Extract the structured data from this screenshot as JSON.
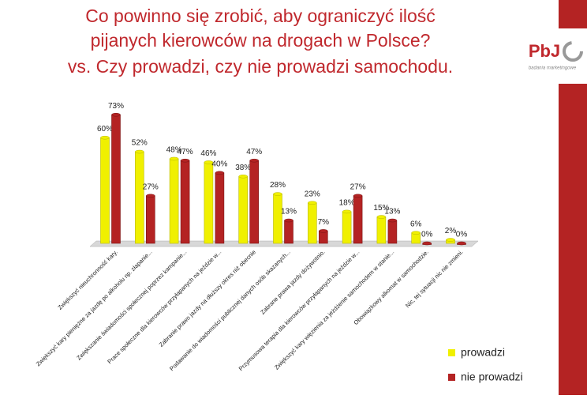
{
  "chart_data": {
    "type": "bar",
    "title": "Co powinno się zrobić, aby ograniczyć ilość pijanych kierowców na drogach w Polsce?  vs. Czy prowadzi, czy nie prowadzi samochodu.",
    "categories": [
      "Zwiększyć nieuchronność kary.",
      "Zwiększyć kary pieniężne za jazdę po alkoholu np. złapanie...",
      "Zwiększanie świadomości społecznej poprzez kampanie...",
      "Prace społeczne dla kierowców przyłapanych na jeździe w...",
      "Zabranie prawo jazdy na dłuższy okres niż obecnie",
      "Podawanie do wiadomości publicznej danych osób skazanych...",
      "Zabrane prawa jazdy dożywotnio.",
      "Przymusowa terapia dla kierowców przyłapanych na jeździe w...",
      "Zwiększyć kary więzienia za jeżdżenie samochodem w stanie...",
      "Obowiązkowy alkomat w samochodzie.",
      "Nic, tej sytuacji nic nie zmieni."
    ],
    "series": [
      {
        "name": "prowadzi",
        "color": "#f0f000",
        "values": [
          60,
          52,
          48,
          46,
          38,
          28,
          23,
          18,
          15,
          6,
          2
        ],
        "value_labels": [
          "60%",
          "52%",
          "48%",
          "46%",
          "38%",
          "28%",
          "23%",
          "18%",
          "15%",
          "6%",
          "2%"
        ]
      },
      {
        "name": "nie prowadzi",
        "color": "#b42323",
        "values": [
          73,
          27,
          47,
          40,
          47,
          13,
          7,
          27,
          13,
          0,
          0
        ],
        "value_labels": [
          "73%",
          "27%",
          "47%",
          "40%",
          "47%",
          "13%",
          "7%",
          "27%",
          "13%",
          "0%",
          "0%"
        ]
      }
    ],
    "legend": "bottom-right"
  },
  "logo": {
    "name": "PbJ",
    "tagline": "badania marketingowe"
  }
}
